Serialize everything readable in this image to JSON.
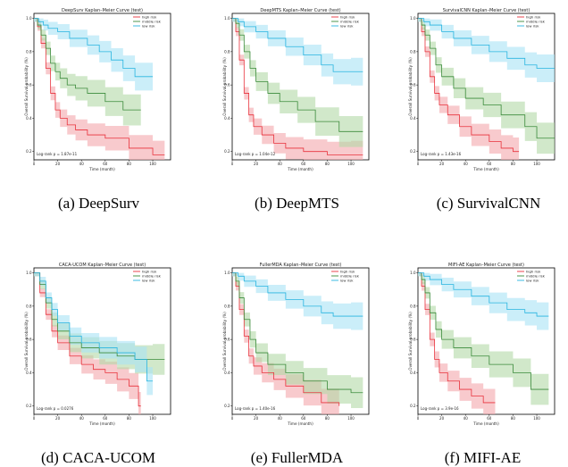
{
  "colors": {
    "high": "#e8323c",
    "middle": "#3a8a3a",
    "low": "#27b4e0",
    "band_high": "#f4a6ac",
    "band_middle": "#b3d9a6",
    "band_low": "#a8e2f5"
  },
  "panels": [
    {
      "caption": "(a) DeepSurv"
    },
    {
      "caption": "(b) DeepMTS"
    },
    {
      "caption": "(c) SurvivalCNN"
    },
    {
      "caption": "(d) CACA-UCOM"
    },
    {
      "caption": "(e) FullerMDA"
    },
    {
      "caption": "(f) MIFI-AE"
    }
  ],
  "chart_data": [
    {
      "type": "line",
      "title": "DeepSurv Kaplan–Meier Curve (test)",
      "xlabel": "Time (month)",
      "ylabel": "Overall Survival probability (%)",
      "xlim": [
        0,
        115
      ],
      "ylim": [
        0.15,
        1.03
      ],
      "xticks": [
        "0",
        "20",
        "40",
        "60",
        "80",
        "100"
      ],
      "xtick_values": [
        0,
        20,
        40,
        60,
        80,
        100
      ],
      "yticks": [
        "1.0",
        "0.8",
        "0.6",
        "0.4",
        "0.2"
      ],
      "ytick_values": [
        1.0,
        0.8,
        0.6,
        0.4,
        0.2
      ],
      "legend": [
        "high risk",
        "middle risk",
        "low risk"
      ],
      "legend_position": "top-right",
      "annotation": "Log-rank p = 1.87e-11",
      "series": [
        {
          "name": "high risk",
          "x": [
            0,
            3,
            6,
            10,
            14,
            18,
            22,
            28,
            35,
            45,
            60,
            80,
            100,
            110
          ],
          "values": [
            1.0,
            0.95,
            0.85,
            0.7,
            0.55,
            0.45,
            0.4,
            0.36,
            0.33,
            0.3,
            0.28,
            0.22,
            0.18,
            0.18
          ]
        },
        {
          "name": "middle risk",
          "x": [
            0,
            3,
            6,
            10,
            14,
            18,
            22,
            28,
            35,
            45,
            60,
            75,
            90
          ],
          "values": [
            1.0,
            0.96,
            0.9,
            0.82,
            0.73,
            0.68,
            0.64,
            0.6,
            0.58,
            0.55,
            0.5,
            0.45,
            0.45
          ]
        },
        {
          "name": "low risk",
          "x": [
            0,
            4,
            8,
            12,
            20,
            30,
            45,
            55,
            65,
            75,
            85,
            100
          ],
          "values": [
            1.0,
            0.98,
            0.96,
            0.94,
            0.92,
            0.88,
            0.84,
            0.8,
            0.75,
            0.7,
            0.65,
            0.65
          ]
        }
      ]
    },
    {
      "type": "line",
      "title": "DeepMTS Kaplan–Meier Curve (test)",
      "xlabel": "Time (month)",
      "ylabel": "Overall Survival probability (%)",
      "xlim": [
        0,
        115
      ],
      "ylim": [
        0.15,
        1.03
      ],
      "xticks": [
        "0",
        "20",
        "40",
        "60",
        "80",
        "100"
      ],
      "xtick_values": [
        0,
        20,
        40,
        60,
        80,
        100
      ],
      "yticks": [
        "1.0",
        "0.8",
        "0.6",
        "0.4",
        "0.2"
      ],
      "ytick_values": [
        1.0,
        0.8,
        0.6,
        0.4,
        0.2
      ],
      "legend": [
        "high risk",
        "middle risk",
        "low risk"
      ],
      "legend_position": "top-right",
      "annotation": "Log-rank p = 1.04e-12",
      "series": [
        {
          "name": "high risk",
          "x": [
            0,
            3,
            6,
            10,
            14,
            18,
            25,
            35,
            45,
            60,
            80,
            100,
            110
          ],
          "values": [
            1.0,
            0.92,
            0.75,
            0.55,
            0.42,
            0.35,
            0.3,
            0.25,
            0.22,
            0.2,
            0.18,
            0.18,
            0.18
          ]
        },
        {
          "name": "middle risk",
          "x": [
            0,
            3,
            6,
            10,
            15,
            20,
            30,
            40,
            55,
            70,
            90,
            110
          ],
          "values": [
            1.0,
            0.97,
            0.9,
            0.8,
            0.7,
            0.62,
            0.55,
            0.5,
            0.45,
            0.38,
            0.32,
            0.32
          ]
        },
        {
          "name": "low risk",
          "x": [
            0,
            5,
            10,
            20,
            30,
            45,
            60,
            75,
            85,
            100,
            110
          ],
          "values": [
            1.0,
            0.98,
            0.95,
            0.92,
            0.88,
            0.83,
            0.78,
            0.72,
            0.68,
            0.68,
            0.68
          ]
        }
      ]
    },
    {
      "type": "line",
      "title": "SurvivalCNN Kaplan–Meier Curve (test)",
      "xlabel": "Time (month)",
      "ylabel": "Overall Survival probability (%)",
      "xlim": [
        0,
        115
      ],
      "ylim": [
        0.15,
        1.03
      ],
      "xticks": [
        "0",
        "20",
        "40",
        "60",
        "80",
        "100"
      ],
      "xtick_values": [
        0,
        20,
        40,
        60,
        80,
        100
      ],
      "yticks": [
        "1.0",
        "0.8",
        "0.6",
        "0.4",
        "0.2"
      ],
      "ytick_values": [
        1.0,
        0.8,
        0.6,
        0.4,
        0.2
      ],
      "legend": [
        "high risk",
        "middle risk",
        "low risk"
      ],
      "legend_position": "top-right",
      "annotation": "Log-rank p = 1.43e-16",
      "series": [
        {
          "name": "high risk",
          "x": [
            0,
            3,
            6,
            10,
            14,
            18,
            25,
            35,
            45,
            60,
            70,
            80,
            85
          ],
          "values": [
            1.0,
            0.92,
            0.8,
            0.65,
            0.55,
            0.48,
            0.42,
            0.35,
            0.3,
            0.26,
            0.22,
            0.2,
            0.2
          ]
        },
        {
          "name": "middle risk",
          "x": [
            0,
            3,
            6,
            10,
            15,
            20,
            30,
            40,
            55,
            70,
            90,
            100,
            115
          ],
          "values": [
            1.0,
            0.96,
            0.9,
            0.82,
            0.72,
            0.65,
            0.58,
            0.52,
            0.48,
            0.42,
            0.35,
            0.28,
            0.28
          ]
        },
        {
          "name": "low risk",
          "x": [
            0,
            5,
            10,
            20,
            30,
            45,
            60,
            75,
            90,
            100,
            115
          ],
          "values": [
            1.0,
            0.98,
            0.96,
            0.92,
            0.88,
            0.84,
            0.8,
            0.76,
            0.72,
            0.7,
            0.7
          ]
        }
      ]
    },
    {
      "type": "line",
      "title": "CACA-UCOM Kaplan–Meier Curve (test)",
      "xlabel": "Time (month)",
      "ylabel": "Overall Survival probability (%)",
      "xlim": [
        0,
        115
      ],
      "ylim": [
        0.15,
        1.03
      ],
      "xticks": [
        "0",
        "20",
        "40",
        "60",
        "80",
        "100"
      ],
      "xtick_values": [
        0,
        20,
        40,
        60,
        80,
        100
      ],
      "yticks": [
        "1.0",
        "0.8",
        "0.6",
        "0.4",
        "0.2"
      ],
      "ytick_values": [
        1.0,
        0.8,
        0.6,
        0.4,
        0.2
      ],
      "legend": [
        "high risk",
        "middle risk",
        "low risk"
      ],
      "legend_position": "top-right",
      "annotation": "Log-rank p = 0.0276",
      "series": [
        {
          "name": "high risk",
          "x": [
            0,
            5,
            10,
            15,
            20,
            30,
            40,
            50,
            60,
            70,
            80,
            88,
            90
          ],
          "values": [
            1.0,
            0.88,
            0.75,
            0.65,
            0.58,
            0.5,
            0.45,
            0.42,
            0.4,
            0.36,
            0.32,
            0.2,
            0.2
          ]
        },
        {
          "name": "middle risk",
          "x": [
            0,
            5,
            10,
            15,
            20,
            30,
            40,
            55,
            70,
            85,
            100,
            110
          ],
          "values": [
            1.0,
            0.93,
            0.82,
            0.72,
            0.65,
            0.58,
            0.55,
            0.52,
            0.5,
            0.48,
            0.48,
            0.48
          ]
        },
        {
          "name": "low risk",
          "x": [
            0,
            5,
            10,
            15,
            20,
            30,
            40,
            55,
            70,
            85,
            95,
            100
          ],
          "values": [
            1.0,
            0.95,
            0.85,
            0.78,
            0.7,
            0.62,
            0.58,
            0.55,
            0.52,
            0.48,
            0.35,
            0.35
          ]
        }
      ]
    },
    {
      "type": "line",
      "title": "FullerMDA Kaplan–Meier Curve (test)",
      "xlabel": "Time (month)",
      "ylabel": "Overall Survival probability (%)",
      "xlim": [
        0,
        115
      ],
      "ylim": [
        0.15,
        1.03
      ],
      "xticks": [
        "0",
        "20",
        "40",
        "60",
        "80",
        "100"
      ],
      "xtick_values": [
        0,
        20,
        40,
        60,
        80,
        100
      ],
      "yticks": [
        "1.0",
        "0.8",
        "0.6",
        "0.4",
        "0.2"
      ],
      "ytick_values": [
        1.0,
        0.8,
        0.6,
        0.4,
        0.2
      ],
      "legend": [
        "high risk",
        "middle risk",
        "low risk"
      ],
      "legend_position": "top-right",
      "annotation": "Log-rank p = 1.40e-16",
      "series": [
        {
          "name": "high risk",
          "x": [
            0,
            3,
            6,
            10,
            14,
            18,
            25,
            35,
            45,
            60,
            75,
            90
          ],
          "values": [
            1.0,
            0.92,
            0.78,
            0.62,
            0.5,
            0.44,
            0.4,
            0.36,
            0.32,
            0.28,
            0.22,
            0.2
          ]
        },
        {
          "name": "middle risk",
          "x": [
            0,
            3,
            6,
            10,
            15,
            20,
            30,
            45,
            60,
            80,
            100,
            110
          ],
          "values": [
            1.0,
            0.95,
            0.85,
            0.72,
            0.6,
            0.52,
            0.45,
            0.4,
            0.35,
            0.3,
            0.28,
            0.28
          ]
        },
        {
          "name": "low risk",
          "x": [
            0,
            5,
            10,
            20,
            30,
            45,
            60,
            75,
            85,
            100,
            110
          ],
          "values": [
            1.0,
            0.98,
            0.95,
            0.92,
            0.88,
            0.84,
            0.8,
            0.76,
            0.74,
            0.74,
            0.74
          ]
        }
      ]
    },
    {
      "type": "line",
      "title": "MIFI-AE Kaplan–Meier Curve (test)",
      "xlabel": "Time (month)",
      "ylabel": "Overall Survival probability (%)",
      "xlim": [
        0,
        115
      ],
      "ylim": [
        0.15,
        1.03
      ],
      "xticks": [
        "0",
        "20",
        "40",
        "60",
        "80",
        "100"
      ],
      "xtick_values": [
        0,
        20,
        40,
        60,
        80,
        100
      ],
      "yticks": [
        "1.0",
        "0.8",
        "0.6",
        "0.4",
        "0.2"
      ],
      "ytick_values": [
        1.0,
        0.8,
        0.6,
        0.4,
        0.2
      ],
      "legend": [
        "high risk",
        "middle risk",
        "low risk"
      ],
      "legend_position": "top-right",
      "annotation": "Log-rank p = 3.9e-16",
      "series": [
        {
          "name": "high risk",
          "x": [
            0,
            3,
            6,
            10,
            14,
            18,
            25,
            35,
            45,
            55,
            65
          ],
          "values": [
            1.0,
            0.92,
            0.78,
            0.6,
            0.48,
            0.4,
            0.35,
            0.3,
            0.26,
            0.22,
            0.22
          ]
        },
        {
          "name": "middle risk",
          "x": [
            0,
            3,
            6,
            10,
            15,
            20,
            30,
            45,
            60,
            80,
            95,
            110
          ],
          "values": [
            1.0,
            0.96,
            0.88,
            0.76,
            0.66,
            0.6,
            0.55,
            0.5,
            0.45,
            0.4,
            0.3,
            0.3
          ]
        },
        {
          "name": "low risk",
          "x": [
            0,
            5,
            10,
            20,
            30,
            45,
            60,
            75,
            90,
            100,
            110
          ],
          "values": [
            1.0,
            0.98,
            0.96,
            0.93,
            0.9,
            0.86,
            0.82,
            0.78,
            0.76,
            0.74,
            0.74
          ]
        }
      ]
    }
  ]
}
